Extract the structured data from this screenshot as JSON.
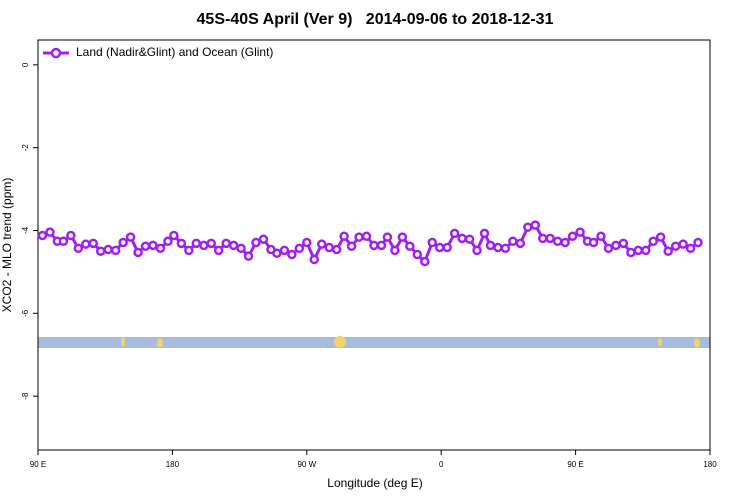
{
  "chart_data": {
    "type": "line",
    "title": "45S-40S April (Ver 9)   2014-09-06 to 2018-12-31",
    "x_label": "Longitude (deg E)",
    "y_label": "XCO2 - MLO trend (ppm)",
    "xlim": [
      90,
      540
    ],
    "ylim": [
      -9.3,
      0.6
    ],
    "xticks": [
      {
        "value": 90,
        "label": "90 E"
      },
      180,
      {
        "value": 270,
        "label": "90 W"
      },
      {
        "value": 360,
        "label": "0"
      },
      {
        "value": 450,
        "label": "90 E"
      },
      {
        "value": 540,
        "label": "180"
      }
    ],
    "yticks": [
      0,
      -2,
      -4,
      -6,
      -8
    ],
    "legend": "top-left",
    "x": [
      93,
      98,
      103,
      107,
      112,
      117,
      122,
      127,
      132,
      137,
      142,
      147,
      152,
      157,
      162,
      167,
      172,
      177,
      181,
      186,
      191,
      196,
      201,
      206,
      211,
      216,
      221,
      226,
      231,
      236,
      241,
      246,
      250,
      255,
      260,
      265,
      270,
      275,
      280,
      285,
      290,
      295,
      300,
      305,
      310,
      315,
      320,
      324,
      329,
      334,
      339,
      344,
      349,
      354,
      359,
      364,
      369,
      374,
      379,
      384,
      389,
      393,
      398,
      403,
      408,
      413,
      418,
      423,
      428,
      433,
      438,
      443,
      448,
      453,
      458,
      462,
      467,
      472,
      477,
      482,
      487,
      492,
      497,
      502,
      507,
      512,
      517,
      522,
      527,
      532
    ],
    "series": [
      {
        "name": "Land (Nadir&Glint) and Ocean (Glint)",
        "color": "#a020f0",
        "values": [
          -4.12,
          -4.04,
          -4.26,
          -4.26,
          -4.12,
          -4.43,
          -4.33,
          -4.31,
          -4.5,
          -4.46,
          -4.48,
          -4.29,
          -4.16,
          -4.53,
          -4.38,
          -4.36,
          -4.43,
          -4.26,
          -4.12,
          -4.31,
          -4.48,
          -4.31,
          -4.36,
          -4.31,
          -4.48,
          -4.31,
          -4.36,
          -4.43,
          -4.62,
          -4.29,
          -4.21,
          -4.46,
          -4.55,
          -4.48,
          -4.58,
          -4.43,
          -4.29,
          -4.7,
          -4.33,
          -4.41,
          -4.46,
          -4.14,
          -4.38,
          -4.16,
          -4.14,
          -4.36,
          -4.36,
          -4.16,
          -4.48,
          -4.16,
          -4.38,
          -4.58,
          -4.75,
          -4.29,
          -4.41,
          -4.41,
          -4.07,
          -4.19,
          -4.21,
          -4.48,
          -4.07,
          -4.36,
          -4.41,
          -4.43,
          -4.26,
          -4.31,
          -3.92,
          -3.87,
          -4.19,
          -4.19,
          -4.26,
          -4.29,
          -4.14,
          -4.04,
          -4.26,
          -4.29,
          -4.14,
          -4.43,
          -4.36,
          -4.31,
          -4.53,
          -4.48,
          -4.48,
          -4.26,
          -4.16,
          -4.5,
          -4.38,
          -4.33,
          -4.43,
          -4.29
        ]
      }
    ]
  }
}
